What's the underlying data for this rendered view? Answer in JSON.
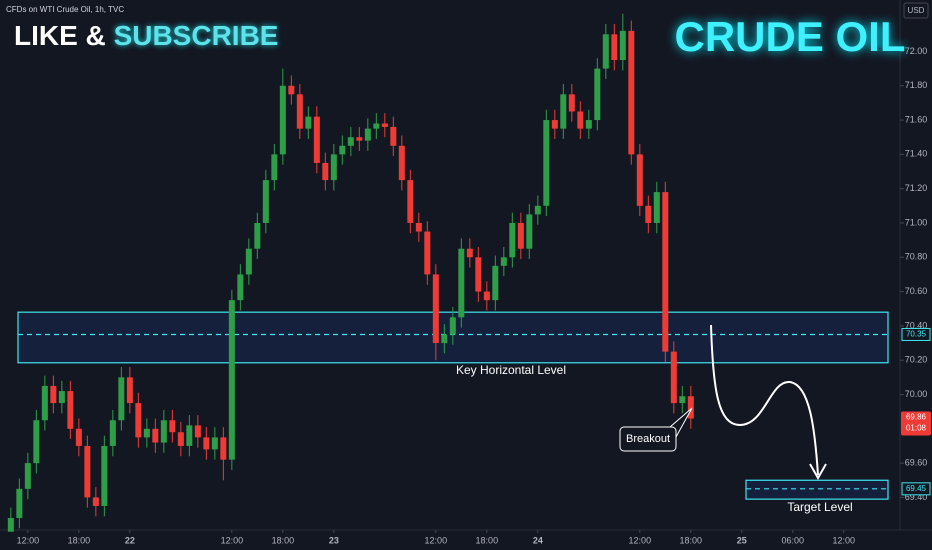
{
  "chart_data": {
    "type": "candlestick",
    "source": "CFDs on WTI Crude Oil, 1h, TVC",
    "currency": "USD",
    "headline": {
      "part1": "LIKE &",
      "part2": "SUBSCRIBE"
    },
    "title": "CRUDE OIL",
    "up_color": "#2f9e48",
    "down_color": "#ef3b36",
    "x": [
      10,
      11,
      12,
      13,
      14,
      15,
      16,
      17,
      18,
      19,
      20,
      21,
      22,
      23,
      24,
      25,
      26,
      27,
      28,
      29,
      30,
      31,
      32,
      33,
      34,
      35,
      36,
      37,
      38,
      39,
      40,
      41,
      42,
      43,
      44,
      45,
      46,
      47,
      48,
      49,
      50,
      51,
      52,
      53,
      54,
      55,
      56,
      57,
      58,
      59,
      60,
      61,
      62,
      63,
      64,
      65,
      66,
      67,
      68,
      69,
      70,
      71,
      72,
      73,
      74,
      75,
      76,
      77,
      78,
      79,
      80,
      81,
      82,
      83,
      84,
      85,
      86,
      87,
      88,
      89,
      90
    ],
    "open": [
      69.2,
      69.28,
      69.45,
      69.6,
      69.85,
      70.05,
      69.95,
      70.02,
      69.8,
      69.7,
      69.4,
      69.35,
      69.7,
      69.85,
      70.1,
      69.95,
      69.75,
      69.8,
      69.72,
      69.85,
      69.78,
      69.7,
      69.82,
      69.75,
      69.68,
      69.75,
      69.62,
      70.55,
      70.7,
      70.85,
      71.0,
      71.25,
      71.4,
      71.8,
      71.75,
      71.55,
      71.62,
      71.35,
      71.25,
      71.4,
      71.45,
      71.5,
      71.48,
      71.55,
      71.58,
      71.56,
      71.45,
      71.25,
      71.0,
      70.95,
      70.7,
      70.3,
      70.35,
      70.45,
      70.85,
      70.8,
      70.6,
      70.55,
      70.75,
      70.8,
      71.0,
      70.85,
      71.05,
      71.1,
      71.6,
      71.55,
      71.75,
      71.65,
      71.55,
      71.6,
      71.9,
      72.1,
      71.95,
      72.12,
      71.4,
      71.1,
      71.0,
      71.18,
      70.25,
      69.95,
      69.99
    ],
    "high": [
      69.34,
      69.51,
      69.66,
      69.91,
      70.11,
      70.11,
      70.08,
      70.08,
      69.86,
      69.76,
      69.46,
      69.76,
      69.91,
      70.16,
      70.16,
      70.01,
      69.86,
      69.86,
      69.91,
      69.91,
      69.84,
      69.88,
      69.88,
      69.81,
      69.81,
      69.81,
      70.61,
      70.76,
      70.91,
      71.06,
      71.31,
      71.46,
      71.9,
      71.86,
      71.81,
      71.68,
      71.68,
      71.41,
      71.46,
      71.51,
      71.56,
      71.56,
      71.61,
      71.64,
      71.64,
      71.62,
      71.51,
      71.31,
      71.06,
      71.01,
      70.76,
      70.41,
      70.51,
      70.91,
      70.91,
      70.86,
      70.66,
      70.81,
      70.86,
      71.06,
      71.06,
      71.11,
      71.16,
      71.66,
      71.66,
      71.81,
      71.81,
      71.71,
      71.66,
      71.96,
      72.16,
      72.16,
      72.22,
      72.18,
      71.46,
      71.16,
      71.24,
      71.24,
      70.31,
      70.05,
      70.05
    ],
    "low": [
      69.22,
      69.22,
      69.39,
      69.54,
      69.79,
      69.89,
      69.89,
      69.74,
      69.64,
      69.34,
      69.29,
      69.29,
      69.64,
      69.79,
      69.89,
      69.69,
      69.69,
      69.66,
      69.66,
      69.72,
      69.64,
      69.64,
      69.69,
      69.62,
      69.62,
      69.5,
      69.56,
      70.49,
      70.64,
      70.79,
      70.94,
      71.19,
      71.34,
      71.69,
      71.49,
      71.49,
      71.29,
      71.19,
      71.19,
      71.34,
      71.39,
      71.42,
      71.42,
      71.49,
      71.5,
      71.39,
      71.19,
      70.94,
      70.89,
      70.64,
      70.2,
      70.24,
      70.29,
      70.39,
      70.74,
      70.54,
      70.49,
      70.49,
      70.69,
      70.74,
      70.79,
      70.79,
      70.99,
      71.04,
      71.49,
      71.49,
      71.59,
      71.49,
      71.49,
      71.54,
      71.84,
      71.89,
      71.89,
      71.34,
      71.04,
      70.94,
      70.94,
      70.19,
      69.89,
      69.89,
      69.8
    ],
    "close": [
      69.28,
      69.45,
      69.6,
      69.85,
      70.05,
      69.95,
      70.02,
      69.8,
      69.7,
      69.4,
      69.35,
      69.7,
      69.85,
      70.1,
      69.95,
      69.75,
      69.8,
      69.72,
      69.85,
      69.78,
      69.7,
      69.82,
      69.75,
      69.68,
      69.75,
      69.62,
      70.55,
      70.7,
      70.85,
      71.0,
      71.25,
      71.4,
      71.8,
      71.75,
      71.55,
      71.62,
      71.35,
      71.25,
      71.4,
      71.45,
      71.5,
      71.48,
      71.55,
      71.58,
      71.56,
      71.45,
      71.25,
      71.0,
      70.95,
      70.7,
      70.3,
      70.35,
      70.45,
      70.85,
      70.8,
      70.6,
      70.55,
      70.75,
      70.8,
      71.0,
      70.85,
      71.05,
      71.1,
      71.6,
      71.55,
      71.75,
      71.65,
      71.55,
      71.6,
      71.9,
      72.1,
      71.95,
      72.12,
      71.4,
      71.1,
      71.0,
      71.18,
      70.25,
      69.95,
      69.99,
      69.86
    ],
    "xlim": [
      9.9,
      115.2
    ],
    "xticks": [
      {
        "value": 12,
        "label": "12:00"
      },
      {
        "value": 18,
        "label": "18:00"
      },
      {
        "value": 24,
        "label": "22"
      },
      {
        "value": 36,
        "label": "12:00"
      },
      {
        "value": 42,
        "label": "18:00"
      },
      {
        "value": 48,
        "label": "23"
      },
      {
        "value": 60,
        "label": "12:00"
      },
      {
        "value": 66,
        "label": "18:00"
      },
      {
        "value": 72,
        "label": "24"
      },
      {
        "value": 84,
        "label": "12:00"
      },
      {
        "value": 90,
        "label": "18:00"
      },
      {
        "value": 96,
        "label": "25"
      },
      {
        "value": 102,
        "label": "06:00"
      },
      {
        "value": 108,
        "label": "12:00"
      }
    ],
    "ylim": [
      69.21,
      72.3
    ],
    "yticks": [
      {
        "value": 69.4,
        "label": "69.40"
      },
      {
        "value": 69.6,
        "label": "69.60"
      },
      {
        "value": 70,
        "label": "70.00"
      },
      {
        "value": 70.2,
        "label": "70.20"
      },
      {
        "value": 70.4,
        "label": "70.40"
      },
      {
        "value": 70.6,
        "label": "70.60"
      },
      {
        "value": 70.8,
        "label": "70.80"
      },
      {
        "value": 71,
        "label": "71.00"
      },
      {
        "value": 71.2,
        "label": "71.20"
      },
      {
        "value": 71.4,
        "label": "71.40"
      },
      {
        "value": 71.6,
        "label": "71.60"
      },
      {
        "value": 71.8,
        "label": "71.80"
      },
      {
        "value": 72,
        "label": "72.00"
      }
    ],
    "grid": false,
    "zones": [
      {
        "label": "Key Horizontal Level",
        "low": 70.185,
        "high": 70.48,
        "level": {
          "value": 70.35,
          "label": "70.35"
        }
      },
      {
        "label": "Target Level",
        "low": 69.39,
        "high": 69.5,
        "level": {
          "value": 69.45,
          "label": "69.45"
        }
      }
    ],
    "last_price": {
      "value": 69.86,
      "label": "69.86",
      "countdown": "01:08"
    },
    "annotation": "Breakout"
  }
}
